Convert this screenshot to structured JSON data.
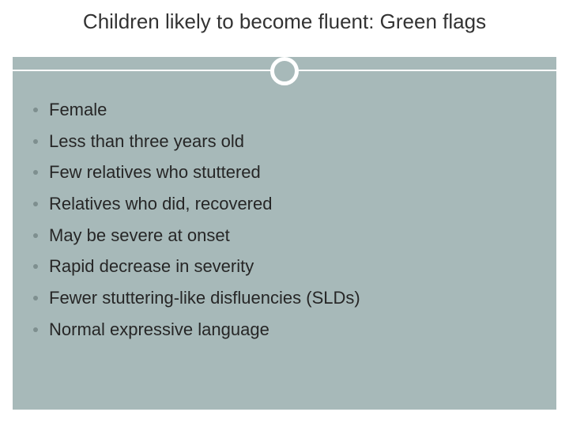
{
  "slide": {
    "title": "Children likely to become fluent: Green flags",
    "title_color": "#333333",
    "title_fontsize": 26,
    "background_color": "#ffffff",
    "panel_color": "#a7b9b9",
    "divider_color": "#ffffff",
    "ring_border_color": "#ffffff",
    "ring_fill_color": "#a7b9b9",
    "bullet_dot_color": "#7e8f8f",
    "bullet_text_color": "#262626",
    "bullet_fontsize": 22,
    "bullets": [
      "Female",
      "Less than three years old",
      "Few relatives who stuttered",
      "Relatives who did, recovered",
      "May be severe at onset",
      "Rapid decrease in severity",
      "Fewer stuttering-like disfluencies (SLDs)",
      "Normal expressive language"
    ]
  }
}
